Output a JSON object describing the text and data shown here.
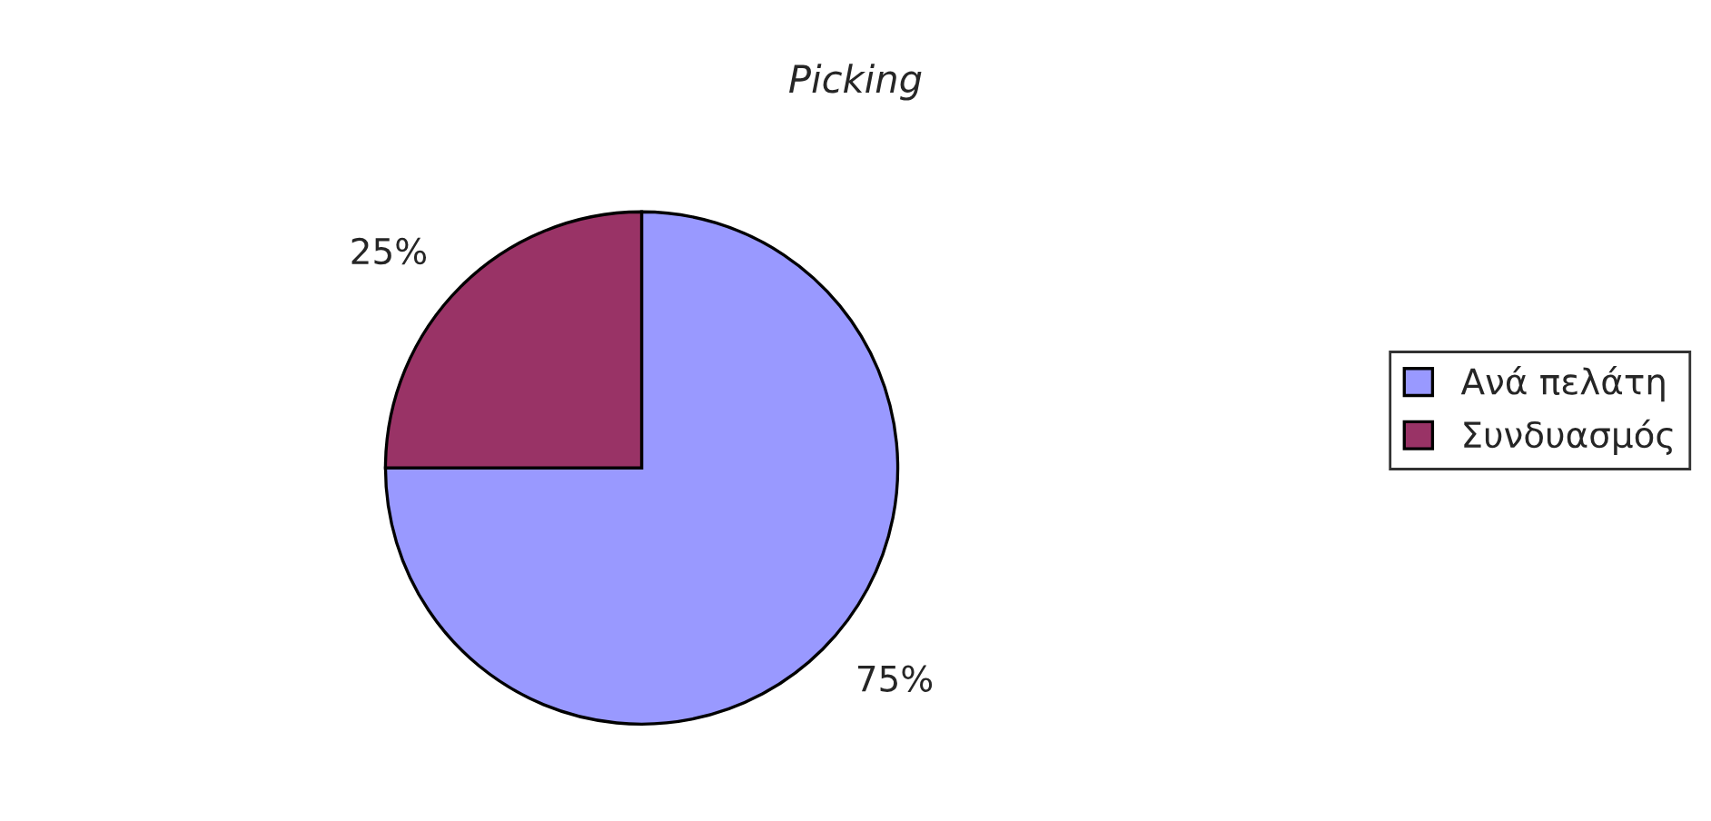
{
  "chart_data": {
    "type": "pie",
    "title": "Picking",
    "categories": [
      "Ανά πελάτη",
      "Συνδυασμός"
    ],
    "values": [
      75,
      25
    ],
    "colors": [
      "#9999ff",
      "#993366"
    ],
    "value_labels": [
      "75%",
      "25%"
    ],
    "legend": "right"
  }
}
